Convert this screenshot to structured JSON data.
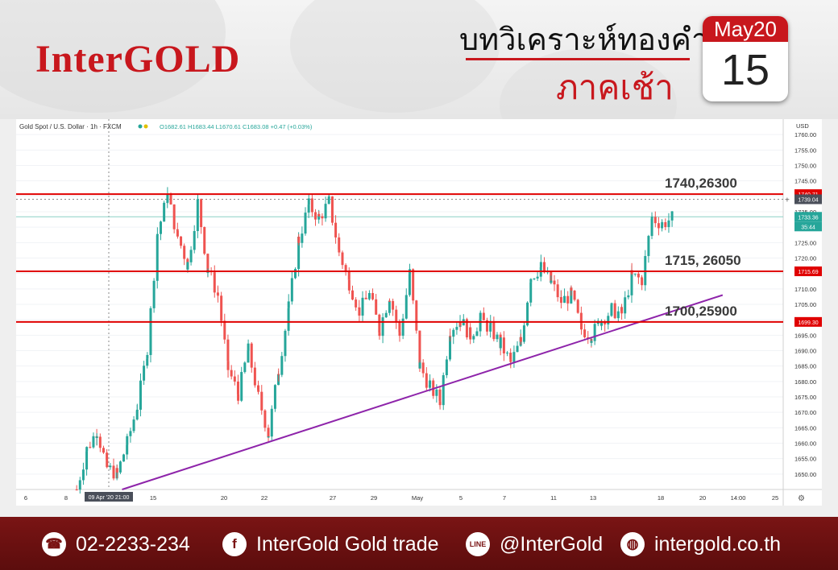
{
  "brand": {
    "logo": "InterGOLD"
  },
  "header": {
    "title_line1": "บทวิเคราะห์ทองคำ",
    "title_line2": "ภาคเช้า"
  },
  "calendar": {
    "month_year": "May20",
    "day": "15"
  },
  "colors": {
    "brand_red": "#c8171d",
    "footer_bg": "#6b1111",
    "level_line": "#e00000",
    "trendline": "#8e24aa",
    "candle_up": "#26a69a",
    "candle_down": "#ef5350"
  },
  "chart_data": {
    "type": "candlestick",
    "symbol_info": "Gold Spot / U.S. Dollar · 1h · FXCM",
    "ohlc_text": "O1682.61  H1683.44  L1670.61  C1683.08  +0.47 (+0.03%)",
    "currency": "USD",
    "ylim": [
      1645,
      1765
    ],
    "y_ticks": [
      1650,
      1655,
      1660,
      1665,
      1670,
      1675,
      1680,
      1685,
      1690,
      1695,
      1700,
      1705,
      1710,
      1715,
      1720,
      1725,
      1730,
      1735,
      1740,
      1745,
      1750,
      1755,
      1760
    ],
    "x_ticks": [
      "6",
      "8",
      "09 Apr '20  21:00",
      "15",
      "20",
      "22",
      "27",
      "29",
      "May",
      "5",
      "7",
      "11",
      "13",
      "18",
      "20",
      "14:00",
      "25"
    ],
    "path": [
      [
        6,
        1645
      ],
      [
        7,
        1658
      ],
      [
        8,
        1664
      ],
      [
        9,
        1652
      ],
      [
        10,
        1650
      ],
      [
        11,
        1660
      ],
      [
        12,
        1672
      ],
      [
        13,
        1690
      ],
      [
        14,
        1728
      ],
      [
        15,
        1740
      ],
      [
        16,
        1727
      ],
      [
        17,
        1718
      ],
      [
        18,
        1738
      ],
      [
        19,
        1716
      ],
      [
        20,
        1708
      ],
      [
        21,
        1684
      ],
      [
        22,
        1676
      ],
      [
        23,
        1690
      ],
      [
        24,
        1675
      ],
      [
        25,
        1663
      ],
      [
        26,
        1684
      ],
      [
        27,
        1704
      ],
      [
        28,
        1726
      ],
      [
        29,
        1737
      ],
      [
        30,
        1733
      ],
      [
        31,
        1738
      ],
      [
        32,
        1722
      ],
      [
        33,
        1712
      ],
      [
        34,
        1703
      ],
      [
        35,
        1708
      ],
      [
        36,
        1697
      ],
      [
        37,
        1708
      ],
      [
        38,
        1695
      ],
      [
        39,
        1715
      ],
      [
        40,
        1685
      ],
      [
        41,
        1678
      ],
      [
        42,
        1674
      ],
      [
        43,
        1697
      ],
      [
        44,
        1700
      ],
      [
        45,
        1695
      ],
      [
        46,
        1700
      ],
      [
        47,
        1697
      ],
      [
        48,
        1692
      ],
      [
        49,
        1686
      ],
      [
        50,
        1693
      ],
      [
        51,
        1714
      ],
      [
        52,
        1717
      ],
      [
        53,
        1712
      ],
      [
        54,
        1706
      ],
      [
        55,
        1708
      ],
      [
        56,
        1697
      ],
      [
        57,
        1695
      ],
      [
        58,
        1700
      ],
      [
        59,
        1703
      ],
      [
        60,
        1702
      ],
      [
        61,
        1714
      ],
      [
        62,
        1713
      ],
      [
        63,
        1733
      ],
      [
        64,
        1731
      ],
      [
        65,
        1733
      ]
    ],
    "horizontal_levels": [
      {
        "price": 1740.71,
        "label": "1740,26300",
        "tag": "1740.71"
      },
      {
        "price": 1715.69,
        "label": "1715, 26050",
        "tag": "1715.69"
      },
      {
        "price": 1699.3,
        "label": "1700,25900",
        "tag": "1699.30"
      }
    ],
    "crosshair_tag": "1739.04",
    "last_price_tag": "1733.36",
    "countdown_tag": "35:44",
    "trendline": {
      "start": [
        10.5,
        1645
      ],
      "end": [
        70,
        1708
      ]
    }
  },
  "footer": {
    "phone": "02-2233-234",
    "facebook": "InterGold Gold trade",
    "line_id": "@InterGold",
    "website": "intergold.co.th",
    "icons": [
      "phone-icon",
      "facebook-icon",
      "line-icon",
      "globe-icon"
    ]
  }
}
